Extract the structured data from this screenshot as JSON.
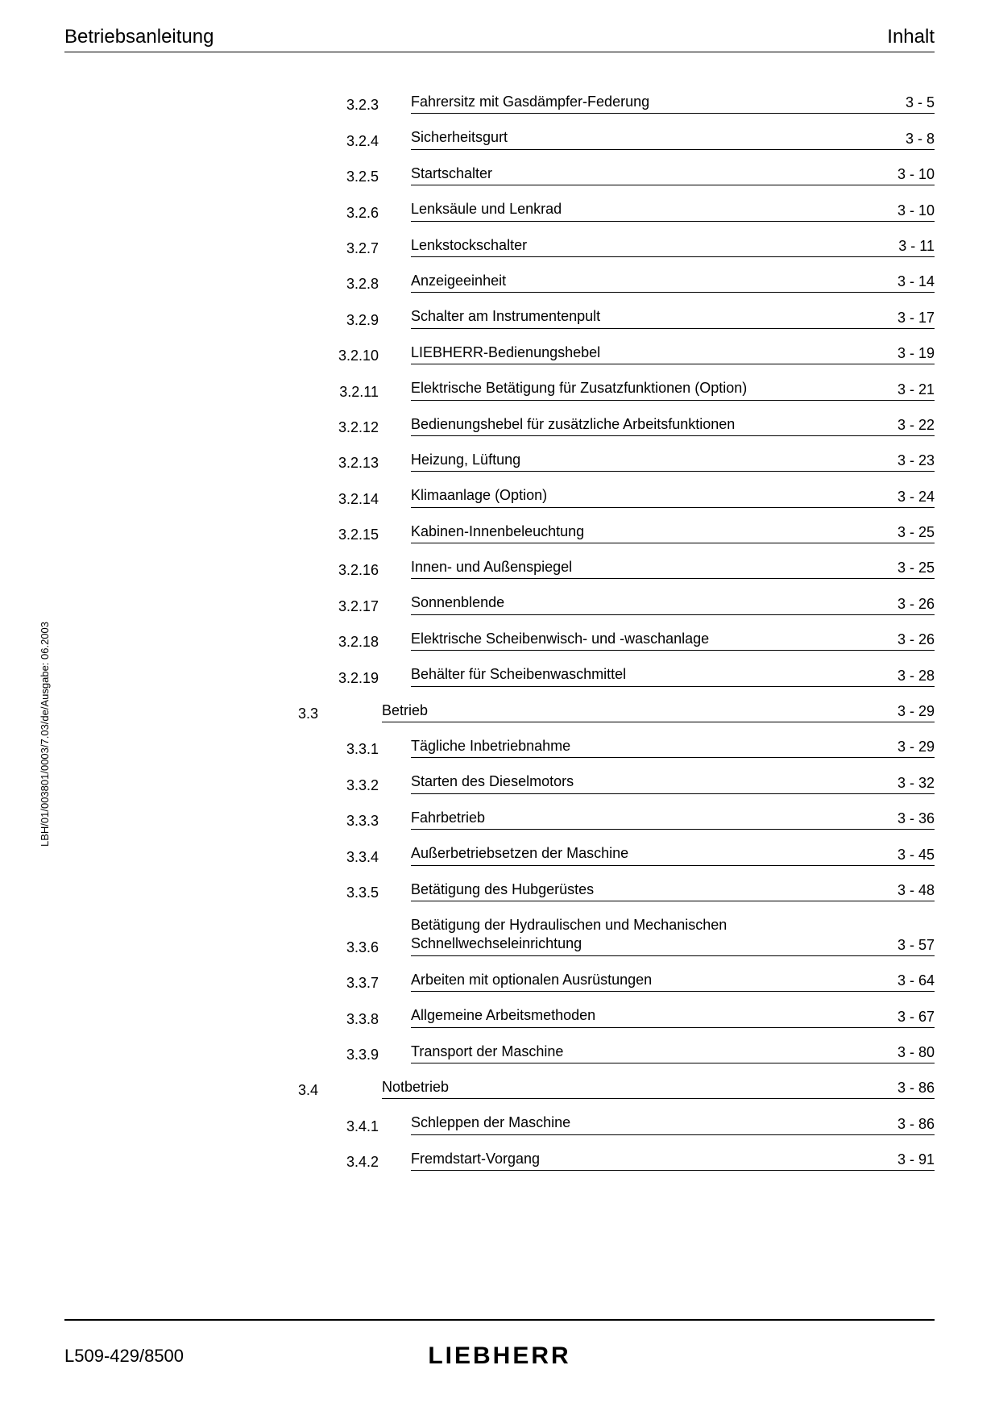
{
  "header": {
    "left": "Betriebsanleitung",
    "right": "Inhalt"
  },
  "toc": {
    "items": [
      {
        "num": "3.2.3",
        "title": "Fahrersitz mit Gasdämpfer-Federung",
        "page": "3 - 5"
      },
      {
        "num": "3.2.4",
        "title": "Sicherheitsgurt",
        "page": "3 - 8"
      },
      {
        "num": "3.2.5",
        "title": "Startschalter",
        "page": "3 - 10"
      },
      {
        "num": "3.2.6",
        "title": "Lenksäule und Lenkrad",
        "page": "3 - 10"
      },
      {
        "num": "3.2.7",
        "title": "Lenkstockschalter",
        "page": "3 - 11"
      },
      {
        "num": "3.2.8",
        "title": "Anzeigeeinheit",
        "page": "3 - 14"
      },
      {
        "num": "3.2.9",
        "title": "Schalter am Instrumentenpult",
        "page": "3 - 17"
      },
      {
        "num": "3.2.10",
        "title": "LIEBHERR-Bedienungshebel",
        "page": "3 - 19"
      },
      {
        "num": "3.2.11",
        "title": "Elektrische Betätigung für Zusatzfunktionen (Option)",
        "page": "3 - 21"
      },
      {
        "num": "3.2.12",
        "title": "Bedienungshebel für zusätzliche Arbeitsfunktionen",
        "page": "3 - 22"
      },
      {
        "num": "3.2.13",
        "title": "Heizung, Lüftung",
        "page": "3 - 23"
      },
      {
        "num": "3.2.14",
        "title": "Klimaanlage (Option)",
        "page": "3 - 24"
      },
      {
        "num": "3.2.15",
        "title": "Kabinen-Innenbeleuchtung",
        "page": "3 - 25"
      },
      {
        "num": "3.2.16",
        "title": "Innen- und Außenspiegel",
        "page": "3 - 25"
      },
      {
        "num": "3.2.17",
        "title": "Sonnenblende",
        "page": "3 - 26"
      },
      {
        "num": "3.2.18",
        "title": "Elektrische Scheibenwisch- und -waschanlage",
        "page": "3 - 26"
      },
      {
        "num": "3.2.19",
        "title": "Behälter für Scheibenwaschmittel",
        "page": "3 - 28"
      }
    ],
    "section33": {
      "num": "3.3",
      "title": "Betrieb",
      "page": "3 - 29"
    },
    "items33": [
      {
        "num": "3.3.1",
        "title": "Tägliche Inbetriebnahme",
        "page": "3 - 29"
      },
      {
        "num": "3.3.2",
        "title": "Starten des Dieselmotors",
        "page": "3 - 32"
      },
      {
        "num": "3.3.3",
        "title": "Fahrbetrieb",
        "page": "3 - 36"
      },
      {
        "num": "3.3.4",
        "title": "Außerbetriebsetzen der Maschine",
        "page": "3 - 45"
      },
      {
        "num": "3.3.5",
        "title": "Betätigung des Hubgerüstes",
        "page": "3 - 48"
      },
      {
        "num": "3.3.6",
        "title": "Betätigung der Hydraulischen und Mechanischen Schnellwechseleinrichtung",
        "page": "3 - 57"
      },
      {
        "num": "3.3.7",
        "title": "Arbeiten mit optionalen Ausrüstungen",
        "page": "3 - 64"
      },
      {
        "num": "3.3.8",
        "title": "Allgemeine Arbeitsmethoden",
        "page": "3 - 67"
      },
      {
        "num": "3.3.9",
        "title": "Transport der Maschine",
        "page": "3 - 80"
      }
    ],
    "section34": {
      "num": "3.4",
      "title": "Notbetrieb",
      "page": "3 - 86"
    },
    "items34": [
      {
        "num": "3.4.1",
        "title": "Schleppen der Maschine",
        "page": "3 - 86"
      },
      {
        "num": "3.4.2",
        "title": "Fremdstart-Vorgang",
        "page": "3 - 91"
      }
    ]
  },
  "sideText": "LBH/01/003801/0003/7.03/de/Ausgabe: 06.2003",
  "footer": {
    "doc": "L509-429/8500",
    "brand": "LIEBHERR"
  }
}
